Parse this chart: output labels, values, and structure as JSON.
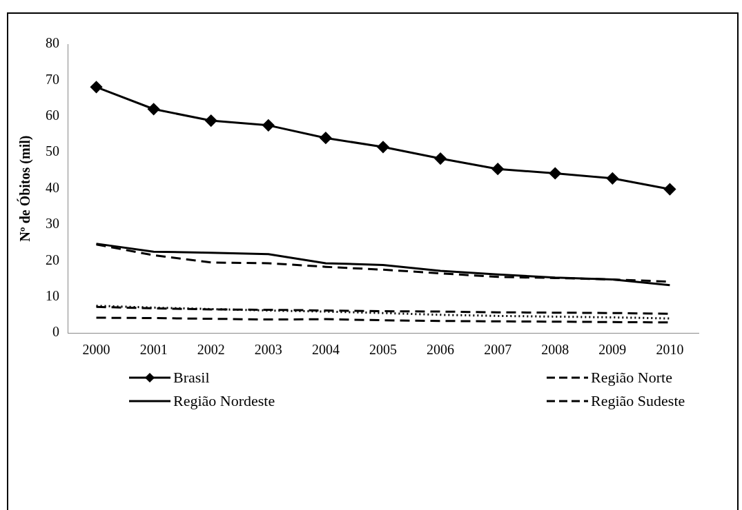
{
  "chart_data": {
    "type": "line",
    "ylabel": "Nº de Óbitos (mil)",
    "categories": [
      "2000",
      "2001",
      "2002",
      "2003",
      "2004",
      "2005",
      "2006",
      "2007",
      "2008",
      "2009",
      "2010"
    ],
    "series": [
      {
        "name": "Brasil",
        "color": "#000000",
        "marker": "diamond",
        "line_style": "solid",
        "values": [
          68.1,
          62,
          58.8,
          57.5,
          54,
          51.5,
          48.3,
          45.4,
          44.2,
          42.8,
          39.8
        ]
      },
      {
        "name": "Região Norte",
        "color": "#000000",
        "marker": "none",
        "line_style": "dashed",
        "values": [
          7.2,
          6.8,
          6.5,
          6.4,
          6.2,
          6.0,
          5.9,
          5.7,
          5.6,
          5.5,
          5.3
        ]
      },
      {
        "name": "Região Nordeste",
        "color": "#000000",
        "marker": "none",
        "line_style": "solid",
        "values": [
          24.7,
          22.5,
          22.2,
          21.8,
          19.3,
          18.8,
          17.2,
          16.2,
          15.3,
          14.8,
          13.2
        ]
      },
      {
        "name": "Região Sudeste",
        "color": "#000000",
        "marker": "none",
        "line_style": "dashed",
        "values": [
          24.5,
          21.5,
          19.5,
          19.3,
          18.3,
          17.5,
          16.5,
          15.5,
          15.2,
          14.8,
          14.2
        ]
      },
      {
        "color": "#000000",
        "marker": "none",
        "line_style": "dashed",
        "values": [
          4.2,
          4.1,
          3.9,
          3.7,
          3.8,
          3.5,
          3.3,
          3.2,
          3.1,
          3.0,
          2.9
        ]
      },
      {
        "color": "#000000",
        "marker": "none",
        "line_style": "dotted",
        "values": [
          7.5,
          7.0,
          6.6,
          6.2,
          5.9,
          5.5,
          5.0,
          4.7,
          4.5,
          4.3,
          4.0
        ]
      }
    ],
    "ylim": [
      0,
      80
    ],
    "yticks": [
      0,
      10,
      20,
      30,
      40,
      50,
      60,
      70,
      80
    ],
    "grid": false,
    "legend": "bottom"
  }
}
